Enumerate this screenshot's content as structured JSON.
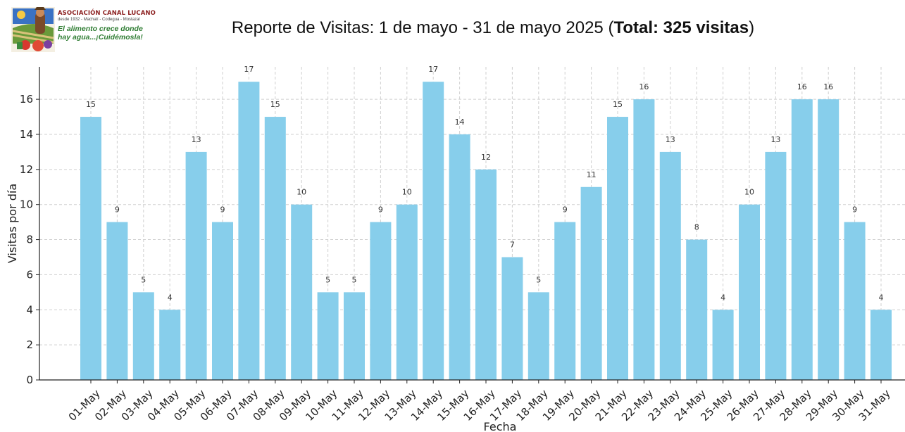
{
  "logo": {
    "name": "ASOCIACIÓN CANAL LUCANO",
    "since": "desde 1932 - Machalí - Codegua - Mostazal",
    "slogan_line1": "El alimento crece donde",
    "slogan_line2": "hay agua...¡Cuidémosla!"
  },
  "header": {
    "title_prefix": "Reporte de Visitas: 1 de mayo - 31 de mayo 2025 (",
    "title_total": "Total: 325 visitas",
    "title_suffix": ")"
  },
  "chart_data": {
    "type": "bar",
    "title": "Reporte de Visitas: 1 de mayo - 31 de mayo 2025 (Total: 325 visitas)",
    "xlabel": "Fecha",
    "ylabel": "Visitas por día",
    "categories": [
      "01-May",
      "02-May",
      "03-May",
      "04-May",
      "05-May",
      "06-May",
      "07-May",
      "08-May",
      "09-May",
      "10-May",
      "11-May",
      "12-May",
      "13-May",
      "14-May",
      "15-May",
      "16-May",
      "17-May",
      "18-May",
      "19-May",
      "20-May",
      "21-May",
      "22-May",
      "23-May",
      "24-May",
      "25-May",
      "26-May",
      "27-May",
      "28-May",
      "29-May",
      "30-May",
      "31-May"
    ],
    "values": [
      15,
      9,
      5,
      4,
      13,
      9,
      17,
      15,
      10,
      5,
      5,
      9,
      10,
      17,
      14,
      12,
      7,
      5,
      9,
      11,
      15,
      16,
      13,
      8,
      4,
      10,
      13,
      16,
      16,
      9,
      4
    ],
    "yticks": [
      0,
      2,
      4,
      6,
      8,
      10,
      12,
      14,
      16
    ],
    "ylim": [
      0,
      17.85
    ],
    "grid": true,
    "bar_color": "#87ceeb",
    "data_labels": true
  }
}
